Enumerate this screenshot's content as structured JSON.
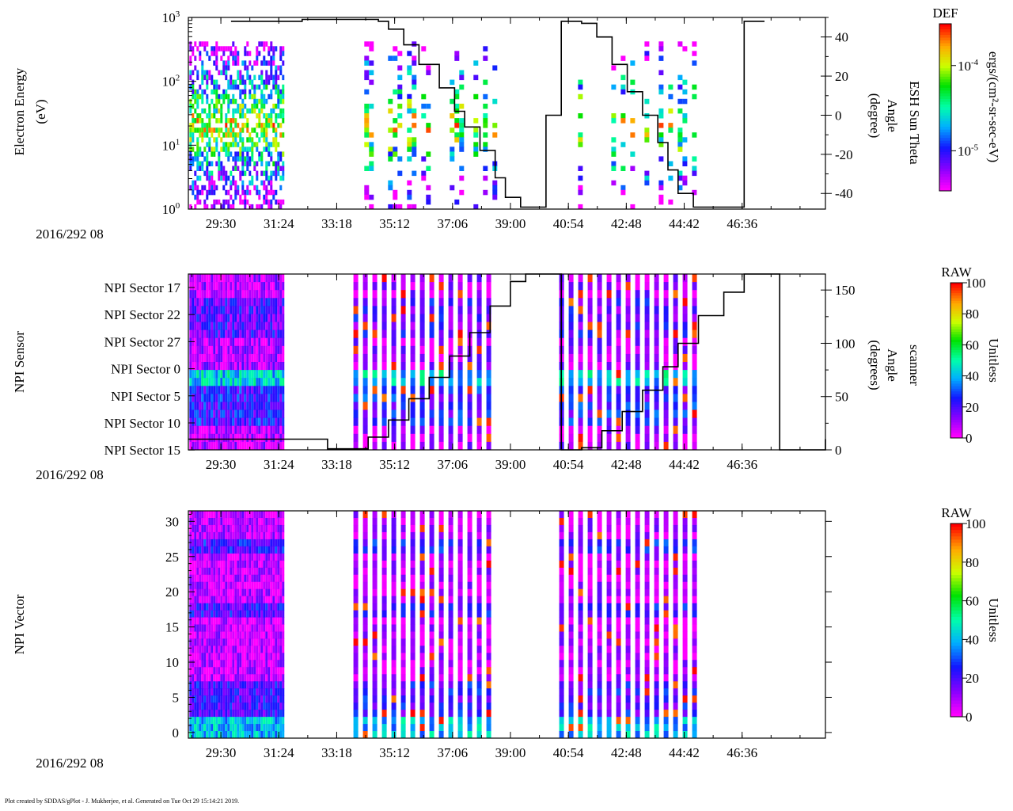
{
  "footer": "Plot created by SDDAS/gPlot - J. Mukherjee, et al.  Generated on Tue Oct 29 15:14:21 2019.",
  "chart_data": [
    {
      "type": "heatmap",
      "id": "esh",
      "ylabel": "Electron Energy",
      "yunit": "(eV)",
      "yscale": "log",
      "ylim": [
        1,
        1000
      ],
      "yticks": [
        {
          "value": 1,
          "base": "10",
          "exp": "0"
        },
        {
          "value": 10,
          "base": "10",
          "exp": "1"
        },
        {
          "value": 100,
          "base": "10",
          "exp": "2"
        },
        {
          "value": 1000,
          "base": "10",
          "exp": "3"
        }
      ],
      "time_label": "2016/292 08",
      "xlim_sec": [
        1706,
        2960
      ],
      "xticks": [
        "29:30",
        "31:24",
        "33:18",
        "35:12",
        "37:06",
        "39:00",
        "40:54",
        "42:48",
        "44:42",
        "46:36"
      ],
      "right_axis": {
        "label1": "ESH Sun Theta",
        "label2": "Angle",
        "label3": "(degree)",
        "ylim": [
          -48,
          50
        ],
        "ticks": [
          -40,
          -20,
          0,
          20,
          40
        ]
      },
      "colorbar": {
        "title": "DEF",
        "label": "ergs/(cm²-sr-sec-eV)",
        "ticks": [
          {
            "base": "10",
            "exp": "-4",
            "pos": 0.75
          },
          {
            "base": "10",
            "exp": "-5",
            "pos": 0.24
          }
        ]
      },
      "data_windows": [
        [
          1708,
          1892
        ],
        [
          2043,
          2320
        ],
        [
          2445,
          2700
        ]
      ],
      "line": {
        "name": "ESH Sun Theta",
        "x": [
          1790,
          1930,
          2080,
          2100,
          2130,
          2160,
          2200,
          2230,
          2250,
          2280,
          2310,
          2330,
          2360,
          2390,
          2410,
          2440,
          2480,
          2510,
          2540,
          2570,
          2600,
          2630,
          2650,
          2670,
          2700,
          2760,
          2800,
          2840
        ],
        "y": [
          48,
          49,
          48,
          44,
          36,
          26,
          14,
          2,
          -6,
          -18,
          -32,
          -42,
          -47,
          -47,
          0,
          48,
          47,
          40,
          26,
          12,
          0,
          -14,
          -28,
          -40,
          -47,
          -47,
          48,
          48
        ]
      }
    },
    {
      "type": "heatmap",
      "id": "npi_sensor",
      "ylabel": "NPI Sensor",
      "ycategories": [
        "NPI Sector 17",
        "NPI Sector 22",
        "NPI Sector 27",
        "NPI Sector 0",
        "NPI Sector 5",
        "NPI Sector 10",
        "NPI Sector 15"
      ],
      "time_label": "2016/292 08",
      "xlim_sec": [
        1706,
        2960
      ],
      "xticks": [
        "29:30",
        "31:24",
        "33:18",
        "35:12",
        "37:06",
        "39:00",
        "40:54",
        "42:48",
        "44:42",
        "46:36"
      ],
      "right_axis": {
        "label1": "scanner",
        "label2": "Angle",
        "label3": "(degrees)",
        "ylim": [
          0,
          165
        ],
        "ticks": [
          0,
          50,
          100,
          150
        ]
      },
      "colorbar": {
        "title": "RAW",
        "label": "Unitless",
        "ticks": [
          0,
          20,
          40,
          60,
          80,
          100
        ],
        "range": [
          0,
          100
        ]
      },
      "data_windows": [
        [
          1708,
          1892
        ],
        [
          2031,
          2300
        ],
        [
          2436,
          2700
        ]
      ],
      "line": {
        "name": "scanner angle",
        "x": [
          1706,
          1880,
          1980,
          2000,
          2040,
          2060,
          2100,
          2140,
          2180,
          2220,
          2260,
          2300,
          2340,
          2370,
          2410,
          2440,
          2480,
          2520,
          2560,
          2600,
          2640,
          2670,
          2710,
          2760,
          2800,
          2830,
          2870,
          2960
        ],
        "y": [
          10,
          10,
          1,
          1,
          1,
          12,
          28,
          48,
          68,
          88,
          110,
          135,
          158,
          165,
          165,
          0,
          2,
          18,
          36,
          56,
          78,
          100,
          126,
          148,
          165,
          165,
          0,
          10
        ]
      }
    },
    {
      "type": "heatmap",
      "id": "npi_vector",
      "ylabel": "NPI Vector",
      "ylim": [
        -0.8,
        31.5
      ],
      "yticks": [
        0,
        5,
        10,
        15,
        20,
        25,
        30
      ],
      "time_label": "2016/292 08",
      "xlim_sec": [
        1706,
        2960
      ],
      "xticks": [
        "29:30",
        "31:24",
        "33:18",
        "35:12",
        "37:06",
        "39:00",
        "40:54",
        "42:48",
        "44:42",
        "46:36"
      ],
      "colorbar": {
        "title": "RAW",
        "label": "Unitless",
        "ticks": [
          0,
          20,
          40,
          60,
          80,
          100
        ],
        "range": [
          0,
          100
        ]
      },
      "data_windows": [
        [
          1708,
          1892
        ],
        [
          2031,
          2300
        ],
        [
          2436,
          2700
        ]
      ]
    }
  ]
}
